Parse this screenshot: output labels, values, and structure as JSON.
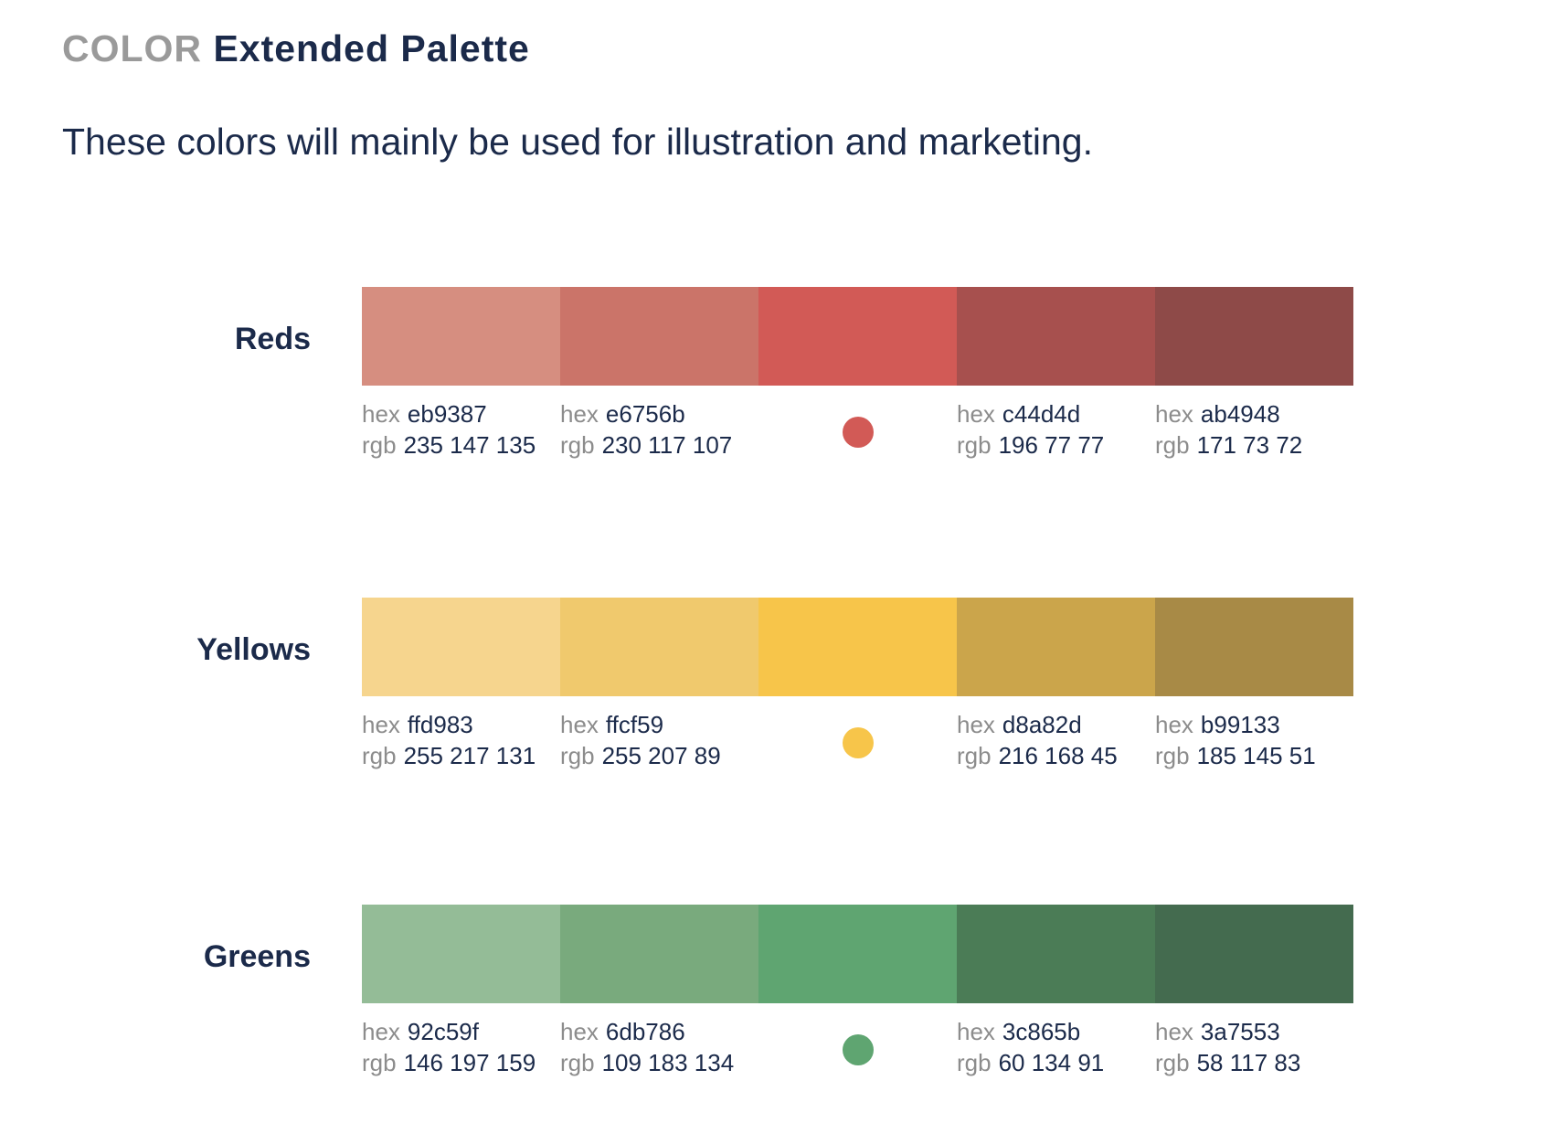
{
  "header": {
    "eyebrow": "COLOR",
    "title": "Extended Palette",
    "description": "These colors will mainly be used for illustration and marketing."
  },
  "labels": {
    "hex": "hex",
    "rgb": "rgb"
  },
  "groups": [
    {
      "name": "Reds",
      "swatches": [
        {
          "color": "#d68e80",
          "hex": "eb9387",
          "rgb": "235 147 135"
        },
        {
          "color": "#cb7469",
          "hex": "e6756b",
          "rgb": "230 117 107"
        },
        {
          "color": "#d25a56"
        },
        {
          "color": "#a7504e",
          "hex": "c44d4d",
          "rgb": "196 77 77"
        },
        {
          "color": "#8e4a48",
          "hex": "ab4948",
          "rgb": "171 73 72"
        }
      ]
    },
    {
      "name": "Yellows",
      "swatches": [
        {
          "color": "#f6d58e",
          "hex": "ffd983",
          "rgb": "255 217 131"
        },
        {
          "color": "#f0c96d",
          "hex": "ffcf59",
          "rgb": "255 207 89"
        },
        {
          "color": "#f7c54a"
        },
        {
          "color": "#cba54b",
          "hex": "d8a82d",
          "rgb": "216 168 45"
        },
        {
          "color": "#a88a46",
          "hex": "b99133",
          "rgb": "185 145 51"
        }
      ]
    },
    {
      "name": "Greens",
      "swatches": [
        {
          "color": "#94bc97",
          "hex": "92c59f",
          "rgb": "146 197 159"
        },
        {
          "color": "#79aa7d",
          "hex": "6db786",
          "rgb": "109 183 134"
        },
        {
          "color": "#5fa571"
        },
        {
          "color": "#4b7c56",
          "hex": "3c865b",
          "rgb": "60 134 91"
        },
        {
          "color": "#446b4f",
          "hex": "3a7553",
          "rgb": "58 117 83"
        }
      ]
    }
  ]
}
